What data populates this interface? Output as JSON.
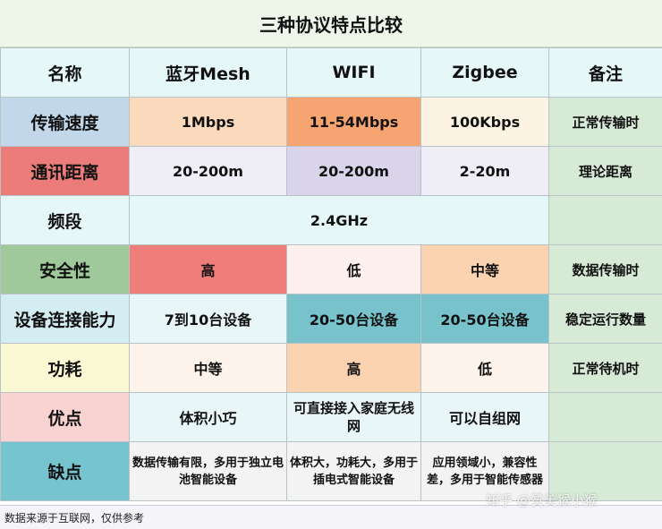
{
  "title": "三种协议特点比较",
  "header": {
    "name": "名称",
    "col1": "蓝牙Mesh",
    "col2": "WIFI",
    "col3": "Zigbee",
    "note": "备注"
  },
  "rows": [
    {
      "label": "传输速度",
      "v1": "1Mbps",
      "v2": "11-54Mbps",
      "v3": "100Kbps",
      "note": "正常传输时"
    },
    {
      "label": "通讯距离",
      "v1": "20-200m",
      "v2": "20-200m",
      "v3": "2-20m",
      "note": "理论距离"
    },
    {
      "label": "频段",
      "span": "2.4GHz",
      "note": ""
    },
    {
      "label": "安全性",
      "v1": "高",
      "v2": "低",
      "v3": "中等",
      "note": "数据传输时"
    },
    {
      "label": "设备连接能力",
      "v1": "7到10台设备",
      "v2": "20-50台设备",
      "v3": "20-50台设备",
      "note": "稳定运行数量"
    },
    {
      "label": "功耗",
      "v1": "中等",
      "v2": "高",
      "v3": "低",
      "note": "正常待机时"
    },
    {
      "label": "优点",
      "v1": "体积小巧",
      "v2": "可直接接入家庭无线网",
      "v3": "可以自组网",
      "note": ""
    },
    {
      "label": "缺点",
      "v1": "数据传输有限，多用于独立电池智能设备",
      "v2": "体积大，功耗大，多用于插电式智能设备",
      "v3": "应用领域小，兼容性差，多用于智能传感器",
      "note": ""
    }
  ],
  "footer": {
    "source": "数据来源于互联网，仅供参考"
  },
  "watermark": "知乎 @赞美猴小猴",
  "colors": {
    "title_bg": "#edf6e9",
    "header_bg": "#e6f7f7",
    "note_bg": "#d7ead6",
    "speed_label": "#c2d8ea",
    "distance_label": "#ec7c79",
    "security_label": "#9fc99a",
    "connect_label": "#d4edf3",
    "power_label": "#fbf8d4",
    "pros_label": "#f9d3d2",
    "cons_label": "#76c4d0"
  }
}
